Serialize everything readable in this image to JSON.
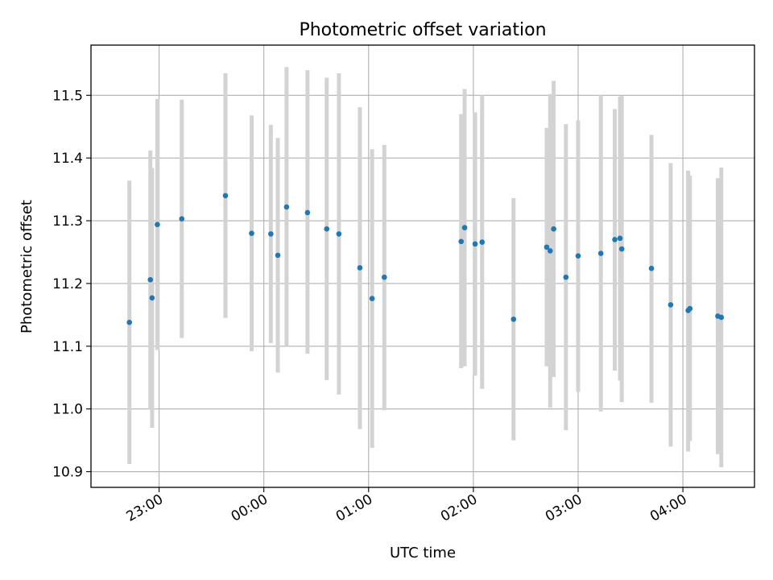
{
  "chart_data": {
    "type": "scatter",
    "title": "Photometric offset variation",
    "xlabel": "UTC time",
    "ylabel": "Photometric offset",
    "grid": true,
    "x_tick_labels": [
      "23:00",
      "00:00",
      "01:00",
      "02:00",
      "03:00",
      "04:00"
    ],
    "y_tick_labels": [
      "10.9",
      "11.0",
      "11.1",
      "11.2",
      "11.3",
      "11.4",
      "11.5"
    ],
    "ylim": [
      10.875,
      11.58
    ],
    "xlim": [
      "22:21",
      "04:41"
    ],
    "colors": {
      "point": "#1f77b4",
      "errorbar": "#d3d3d3",
      "grid": "#b0b0b0"
    },
    "series": [
      {
        "points": [
          {
            "x": "22:43",
            "y": 11.138,
            "ylo": 10.912,
            "yhi": 11.364
          },
          {
            "x": "22:55",
            "y": 11.206,
            "ylo": 11.0,
            "yhi": 11.412
          },
          {
            "x": "22:56",
            "y": 11.177,
            "ylo": 10.97,
            "yhi": 11.384
          },
          {
            "x": "22:59",
            "y": 11.294,
            "ylo": 11.094,
            "yhi": 11.494
          },
          {
            "x": "23:13",
            "y": 11.303,
            "ylo": 11.113,
            "yhi": 11.493
          },
          {
            "x": "23:38",
            "y": 11.34,
            "ylo": 11.145,
            "yhi": 11.535
          },
          {
            "x": "23:53",
            "y": 11.28,
            "ylo": 11.092,
            "yhi": 11.468
          },
          {
            "x": "00:04",
            "y": 11.279,
            "ylo": 11.105,
            "yhi": 11.453
          },
          {
            "x": "00:08",
            "y": 11.245,
            "ylo": 11.058,
            "yhi": 11.432
          },
          {
            "x": "00:13",
            "y": 11.322,
            "ylo": 11.1,
            "yhi": 11.545
          },
          {
            "x": "00:25",
            "y": 11.313,
            "ylo": 11.088,
            "yhi": 11.54
          },
          {
            "x": "00:36",
            "y": 11.287,
            "ylo": 11.046,
            "yhi": 11.528
          },
          {
            "x": "00:43",
            "y": 11.279,
            "ylo": 11.023,
            "yhi": 11.535
          },
          {
            "x": "00:55",
            "y": 11.225,
            "ylo": 10.968,
            "yhi": 11.481
          },
          {
            "x": "01:02",
            "y": 11.176,
            "ylo": 10.938,
            "yhi": 11.414
          },
          {
            "x": "01:09",
            "y": 11.21,
            "ylo": 10.998,
            "yhi": 11.421
          },
          {
            "x": "01:53",
            "y": 11.267,
            "ylo": 11.065,
            "yhi": 11.47
          },
          {
            "x": "01:55",
            "y": 11.289,
            "ylo": 11.068,
            "yhi": 11.51
          },
          {
            "x": "02:01",
            "y": 11.263,
            "ylo": 11.053,
            "yhi": 11.473
          },
          {
            "x": "02:05",
            "y": 11.266,
            "ylo": 11.032,
            "yhi": 11.5
          },
          {
            "x": "02:23",
            "y": 11.143,
            "ylo": 10.95,
            "yhi": 11.336
          },
          {
            "x": "02:42",
            "y": 11.258,
            "ylo": 11.068,
            "yhi": 11.448
          },
          {
            "x": "02:44",
            "y": 11.252,
            "ylo": 11.002,
            "yhi": 11.502
          },
          {
            "x": "02:46",
            "y": 11.287,
            "ylo": 11.051,
            "yhi": 11.523
          },
          {
            "x": "02:53",
            "y": 11.21,
            "ylo": 10.966,
            "yhi": 11.454
          },
          {
            "x": "03:00",
            "y": 11.244,
            "ylo": 11.027,
            "yhi": 11.46
          },
          {
            "x": "03:13",
            "y": 11.248,
            "ylo": 10.996,
            "yhi": 11.5
          },
          {
            "x": "03:21",
            "y": 11.27,
            "ylo": 11.061,
            "yhi": 11.478
          },
          {
            "x": "03:24",
            "y": 11.272,
            "ylo": 11.045,
            "yhi": 11.498
          },
          {
            "x": "03:25",
            "y": 11.255,
            "ylo": 11.011,
            "yhi": 11.499
          },
          {
            "x": "03:42",
            "y": 11.224,
            "ylo": 11.01,
            "yhi": 11.437
          },
          {
            "x": "03:53",
            "y": 11.166,
            "ylo": 10.94,
            "yhi": 11.392
          },
          {
            "x": "04:03",
            "y": 11.157,
            "ylo": 10.932,
            "yhi": 11.38
          },
          {
            "x": "04:04",
            "y": 11.16,
            "ylo": 10.949,
            "yhi": 11.372
          },
          {
            "x": "04:20",
            "y": 11.148,
            "ylo": 10.928,
            "yhi": 11.368
          },
          {
            "x": "04:22",
            "y": 11.146,
            "ylo": 10.907,
            "yhi": 11.385
          }
        ]
      }
    ]
  }
}
